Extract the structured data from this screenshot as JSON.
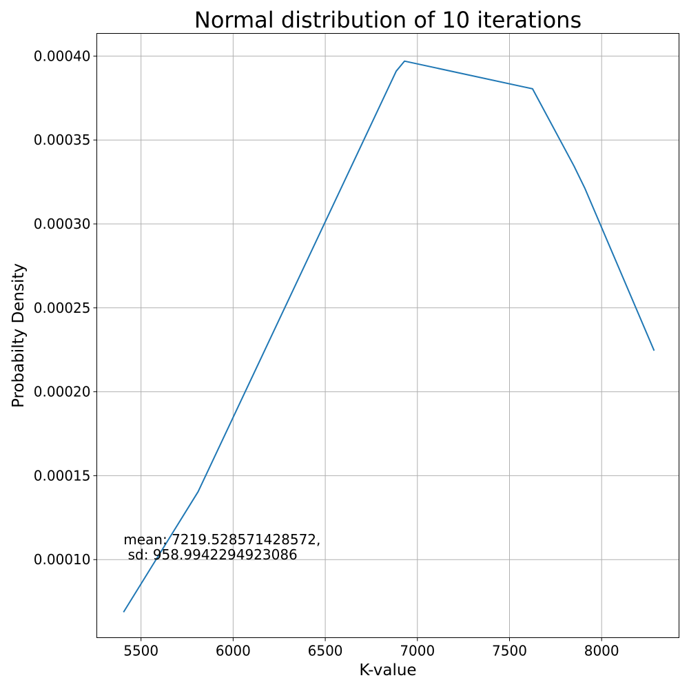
{
  "chart_data": {
    "type": "line",
    "title": "Normal distribution of 10 iterations",
    "xlabel": "K-value",
    "ylabel": "Probabilty Density",
    "xlim": [
      5260,
      8420
    ],
    "ylim": [
      5.35e-05,
      0.0004135
    ],
    "grid": true,
    "xticks": [
      5500,
      6000,
      6500,
      7000,
      7500,
      8000
    ],
    "xtick_labels": [
      "5500",
      "6000",
      "6500",
      "7000",
      "7500",
      "8000"
    ],
    "yticks": [
      0.0001,
      0.00015,
      0.0002,
      0.00025,
      0.0003,
      0.00035,
      0.0004
    ],
    "ytick_labels": [
      "0.00010",
      "0.00015",
      "0.00020",
      "0.00025",
      "0.00030",
      "0.00035",
      "0.00040"
    ],
    "series": [
      {
        "color": "#1f77b4",
        "x": [
          5405,
          5810,
          6885,
          6930,
          7625,
          7850,
          7910,
          8285
        ],
        "y": [
          6.87e-05,
          0.0001405,
          0.000391,
          0.000397,
          0.0003805,
          0.0003345,
          0.000321,
          0.0002245
        ]
      }
    ],
    "annotation": {
      "lines": [
        "mean: 7219.528571428572,",
        " sd: 958.9942294923086"
      ],
      "x": 5405,
      "y": 0.0001
    }
  }
}
